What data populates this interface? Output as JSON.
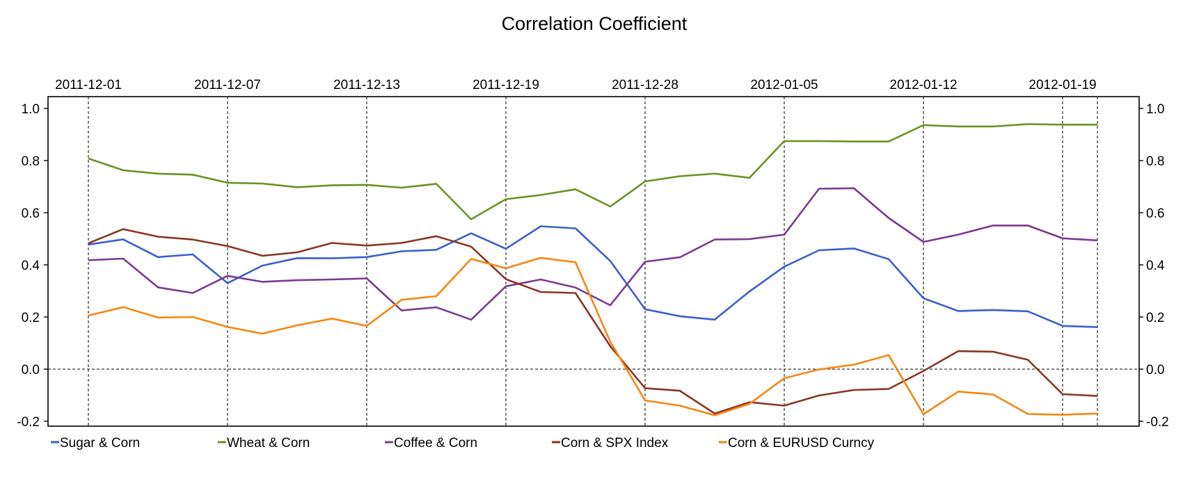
{
  "chart_data": {
    "type": "line",
    "title": "Correlation Coefficient",
    "xlabel": "",
    "ylabel": "",
    "ylim": [
      -0.2,
      1.0
    ],
    "ytick_labels": [
      "-0.2",
      "0.0",
      "0.2",
      "0.4",
      "0.6",
      "0.8",
      "1.0"
    ],
    "x_tick_labels": [
      "2011-12-01",
      "2011-12-07",
      "2011-12-13",
      "2011-12-19",
      "2011-12-28",
      "2012-01-05",
      "2012-01-12",
      "2012-01-19"
    ],
    "x_tick_index": [
      0,
      4,
      8,
      12,
      16,
      20,
      24,
      28
    ],
    "zero_line": true,
    "legend_position": "bottom",
    "series": [
      {
        "name": "Sugar  &  Corn",
        "color": "#3a5fd0",
        "values": [
          0.478,
          0.498,
          0.43,
          0.44,
          0.33,
          0.397,
          0.426,
          0.425,
          0.43,
          0.452,
          0.458,
          0.521,
          0.462,
          0.548,
          0.54,
          0.415,
          0.23,
          0.203,
          0.19,
          0.298,
          0.393,
          0.456,
          0.463,
          0.422,
          0.272,
          0.223,
          0.227,
          0.222,
          0.166,
          0.161
        ]
      },
      {
        "name": "Wheat  &  Corn",
        "color": "#6a9220",
        "values": [
          0.808,
          0.763,
          0.75,
          0.746,
          0.715,
          0.712,
          0.698,
          0.705,
          0.707,
          0.696,
          0.711,
          0.575,
          0.652,
          0.668,
          0.69,
          0.624,
          0.72,
          0.74,
          0.75,
          0.734,
          0.875,
          0.875,
          0.873,
          0.873,
          0.936,
          0.931,
          0.931,
          0.94,
          0.938,
          0.938
        ]
      },
      {
        "name": "Coffee  &  Corn",
        "color": "#7a3a90",
        "values": [
          0.418,
          0.424,
          0.314,
          0.292,
          0.358,
          0.335,
          0.341,
          0.344,
          0.348,
          0.225,
          0.237,
          0.19,
          0.318,
          0.344,
          0.313,
          0.245,
          0.412,
          0.429,
          0.497,
          0.499,
          0.516,
          0.692,
          0.694,
          0.58,
          0.488,
          0.516,
          0.551,
          0.551,
          0.502,
          0.494
        ]
      },
      {
        "name": "Corn  &  SPX Index",
        "color": "#8a3524",
        "values": [
          0.483,
          0.537,
          0.508,
          0.497,
          0.472,
          0.435,
          0.448,
          0.484,
          0.474,
          0.484,
          0.51,
          0.47,
          0.345,
          0.296,
          0.292,
          0.088,
          -0.073,
          -0.083,
          -0.17,
          -0.127,
          -0.14,
          -0.101,
          -0.08,
          -0.076,
          -0.007,
          0.069,
          0.067,
          0.036,
          -0.096,
          -0.103
        ]
      },
      {
        "name": "Corn  &  EURUSD Curncy",
        "color": "#f7860f",
        "values": [
          0.206,
          0.238,
          0.198,
          0.2,
          0.162,
          0.136,
          0.168,
          0.194,
          0.166,
          0.266,
          0.28,
          0.423,
          0.387,
          0.427,
          0.41,
          0.105,
          -0.12,
          -0.14,
          -0.177,
          -0.133,
          -0.035,
          -0.001,
          0.017,
          0.054,
          -0.173,
          -0.086,
          -0.097,
          -0.172,
          -0.175,
          -0.17
        ]
      }
    ]
  }
}
